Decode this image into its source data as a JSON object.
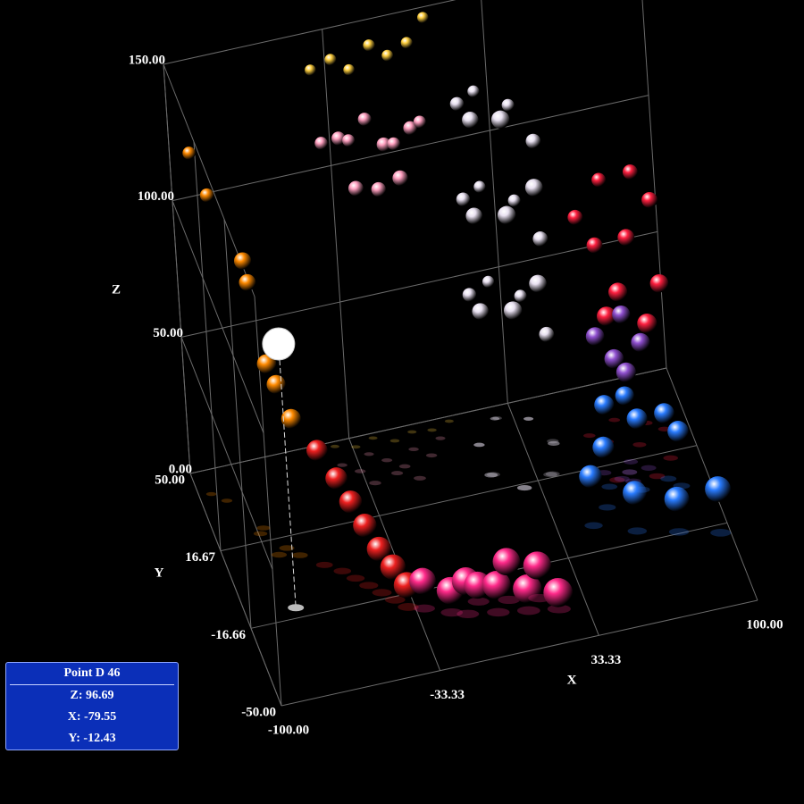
{
  "chart_data": {
    "type": "scatter3d",
    "x_label": "X",
    "y_label": "Y",
    "z_label": "Z",
    "xlim": [
      -100,
      100
    ],
    "ylim": [
      -50,
      50
    ],
    "zlim": [
      0,
      150
    ],
    "xticks": [
      {
        "value": -100,
        "label": "-100.00"
      },
      {
        "value": -33.33,
        "label": "-33.33"
      },
      {
        "value": 33.33,
        "label": "33.33"
      },
      {
        "value": 100,
        "label": "100.00"
      }
    ],
    "yticks": [
      {
        "value": -50,
        "label": "-50.00"
      },
      {
        "value": -16.66,
        "label": "-16.66"
      },
      {
        "value": 16.67,
        "label": "16.67"
      },
      {
        "value": 50,
        "label": "50.00"
      }
    ],
    "zticks": [
      {
        "value": 0,
        "label": "0.00"
      },
      {
        "value": 50,
        "label": "50.00"
      },
      {
        "value": 100,
        "label": "100.00"
      },
      {
        "value": 150,
        "label": "150.00"
      }
    ],
    "grid": true,
    "series": [
      {
        "color": "#ff8a00",
        "x": [
          -95,
          -90,
          -82,
          -80,
          -78,
          -74,
          -70
        ],
        "y": [
          40,
          36,
          20,
          22,
          10,
          12,
          8
        ],
        "z": [
          125,
          112,
          100,
          90,
          70,
          60,
          50
        ]
      },
      {
        "color": "#ee2020",
        "x": [
          -62,
          -56,
          -52,
          -48,
          -44,
          -40,
          -36
        ],
        "y": [
          2,
          -2,
          -6,
          -10,
          -14,
          -18,
          -22
        ],
        "z": [
          42,
          34,
          28,
          22,
          16,
          12,
          8
        ]
      },
      {
        "color": "#ff2a8a",
        "x": [
          -30,
          -20,
          -14,
          -8,
          -2,
          4,
          10,
          16,
          22
        ],
        "y": [
          -24,
          -28,
          -30,
          -26,
          -32,
          -28,
          -34,
          -30,
          -36
        ],
        "z": [
          10,
          8,
          12,
          6,
          10,
          14,
          8,
          12,
          6
        ]
      },
      {
        "color": "#ffa0c0",
        "x": [
          -40,
          -34,
          -28,
          -22,
          -16,
          -10,
          -4,
          2,
          -30,
          -20,
          -12
        ],
        "y": [
          40,
          36,
          42,
          38,
          34,
          40,
          36,
          42,
          30,
          32,
          28
        ],
        "z": [
          118,
          122,
          115,
          125,
          118,
          112,
          120,
          116,
          108,
          104,
          110
        ]
      },
      {
        "color": "#ffd040",
        "x": [
          -40,
          -32,
          -24,
          -16,
          -8,
          0,
          8
        ],
        "y": [
          48,
          46,
          48,
          45,
          47,
          46,
          48
        ],
        "z": [
          138,
          142,
          135,
          145,
          138,
          142,
          148
        ]
      },
      {
        "color": "#e8e0f0",
        "x": [
          45,
          39,
          27,
          16,
          16,
          27,
          39,
          45,
          39,
          26,
          16,
          16,
          27,
          40,
          45,
          39,
          26,
          16,
          17,
          27
        ],
        "y": [
          30,
          42,
          45,
          36,
          23,
          15,
          18,
          30,
          42,
          45,
          36,
          23,
          15,
          18,
          31,
          42,
          45,
          36,
          23,
          15
        ],
        "z": [
          40,
          45,
          50,
          55,
          60,
          65,
          70,
          75,
          80,
          85,
          90,
          95,
          100,
          105,
          110,
          115,
          120,
          125,
          130,
          135
        ]
      },
      {
        "color": "#ff2040",
        "x": [
          60,
          66,
          72,
          78,
          84,
          90,
          64,
          70,
          80,
          88
        ],
        "y": [
          30,
          26,
          34,
          22,
          30,
          26,
          10,
          12,
          8,
          14
        ],
        "z": [
          80,
          72,
          88,
          76,
          92,
          84,
          60,
          66,
          56,
          64
        ]
      },
      {
        "color": "#9050d0",
        "x": [
          60,
          66,
          72,
          78,
          70
        ],
        "y": [
          14,
          10,
          16,
          12,
          8
        ],
        "z": [
          50,
          44,
          54,
          46,
          40
        ]
      },
      {
        "color": "#2a7cff",
        "x": [
          48,
          56,
          64,
          72,
          80,
          88,
          96,
          60,
          70,
          84
        ],
        "y": [
          -6,
          0,
          -12,
          4,
          -16,
          2,
          -20,
          8,
          12,
          6
        ],
        "z": [
          18,
          22,
          14,
          26,
          12,
          20,
          16,
          30,
          28,
          24
        ]
      }
    ],
    "highlight": {
      "label": "Point D 46",
      "z": 96.69,
      "x": -79.55,
      "y": -12.43,
      "value_labels": [
        "Z: 96.69",
        "X: -79.55",
        "Y: -12.43"
      ]
    }
  }
}
